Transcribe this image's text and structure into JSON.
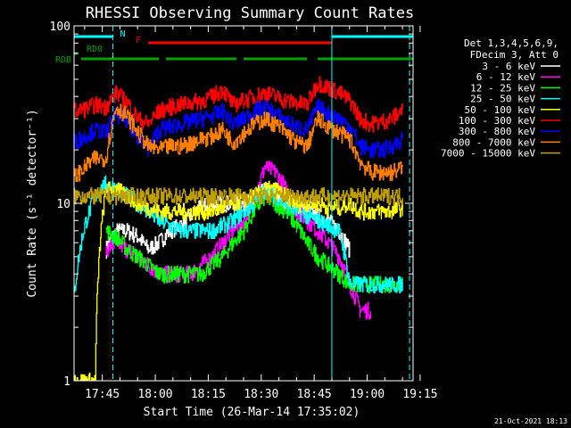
{
  "chart_data": {
    "type": "line",
    "title": "RHESSI Observing Summary Count Rates",
    "xlabel": "Start Time (26-Mar-14 17:35:02)",
    "ylabel": "Count Rate (s⁻¹ detector⁻¹)",
    "yscale": "log",
    "ylim": [
      1,
      100
    ],
    "xlim": [
      "17:37",
      "19:13"
    ],
    "xticks": [
      "17:45",
      "18:00",
      "18:15",
      "18:30",
      "18:45",
      "19:00",
      "19:15"
    ],
    "yticks": [
      "1",
      "10",
      "100"
    ],
    "legend_header": [
      "Det 1,3,4,5,6,9,",
      "FDecim 3, Att 0"
    ],
    "legend_position": "top-right",
    "footer": "21-Oct-2021 18:13",
    "x": [
      "17:37",
      "17:40",
      "17:43",
      "17:46",
      "17:49",
      "17:52",
      "17:55",
      "17:58",
      "18:01",
      "18:04",
      "18:07",
      "18:10",
      "18:13",
      "18:16",
      "18:19",
      "18:22",
      "18:25",
      "18:28",
      "18:31",
      "18:34",
      "18:37",
      "18:40",
      "18:43",
      "18:46",
      "18:49",
      "18:52",
      "18:55",
      "18:58",
      "19:01",
      "19:04",
      "19:07",
      "19:10"
    ],
    "series": [
      {
        "name": "3 - 6 keV",
        "color": "#ffffff",
        "values": [
          null,
          null,
          null,
          5.5,
          7,
          7,
          6.5,
          5.5,
          6,
          7,
          7.5,
          8.5,
          9.5,
          10,
          10,
          10,
          10,
          10.5,
          12,
          11,
          10,
          9.5,
          9,
          8.5,
          8,
          7,
          5.5,
          null,
          null,
          null,
          null,
          null
        ]
      },
      {
        "name": "6 - 12 keV",
        "color": "#ff00ff",
        "values": [
          null,
          null,
          null,
          5.5,
          6,
          5.5,
          5,
          4.5,
          4,
          4,
          4,
          4,
          4.5,
          5,
          6,
          7,
          8,
          10,
          16,
          15,
          12,
          9,
          8,
          7,
          6,
          5,
          3.5,
          2.5,
          2.5,
          null,
          null,
          null
        ]
      },
      {
        "name": "12 - 25 keV",
        "color": "#00ff00",
        "values": [
          null,
          null,
          null,
          7,
          6.5,
          5.5,
          5,
          4.5,
          4,
          4,
          4,
          4,
          4,
          4.5,
          5,
          6,
          7,
          9,
          11,
          10,
          9,
          7.5,
          6,
          5,
          4.5,
          4,
          3.5,
          3.5,
          3.5,
          3.5,
          3.5,
          3.5
        ]
      },
      {
        "name": "25 - 50 keV",
        "color": "#00ffff",
        "values": [
          3,
          7.5,
          11,
          13,
          12,
          11,
          10,
          9,
          8,
          7.5,
          7,
          7,
          7,
          7,
          7.5,
          8,
          9,
          10,
          12,
          11,
          10,
          9,
          8.5,
          8,
          7.5,
          7,
          3.5,
          3.5,
          3.5,
          3.5,
          3.5,
          3.5
        ]
      },
      {
        "name": "50 - 100 keV",
        "color": "#ffff00",
        "values": [
          1,
          1,
          1,
          12,
          12,
          11,
          10,
          9.5,
          9,
          9,
          9,
          9,
          9,
          9,
          9.5,
          10,
          10.5,
          11,
          12,
          12,
          11,
          10,
          10,
          10,
          9.5,
          9.5,
          10,
          9,
          9,
          9,
          9,
          9.5
        ]
      },
      {
        "name": "100 - 300 keV",
        "color": "#ff0000",
        "values": [
          33,
          34,
          36,
          35,
          42,
          37,
          30,
          28,
          33,
          35,
          36,
          37,
          38,
          40,
          44,
          36,
          38,
          40,
          42,
          40,
          38,
          37,
          36,
          48,
          45,
          42,
          38,
          30,
          28,
          29,
          30,
          34
        ]
      },
      {
        "name": "300 - 800 keV",
        "color": "#0000ff",
        "values": [
          22,
          24,
          26,
          25,
          32,
          29,
          24,
          20,
          26,
          27,
          28,
          29,
          30,
          31,
          33,
          28,
          30,
          33,
          35,
          32,
          29,
          27,
          26,
          35,
          32,
          30,
          27,
          21,
          20,
          20,
          21,
          23
        ]
      },
      {
        "name": "800 - 7000 keV",
        "color": "#ff8000",
        "values": [
          14,
          16,
          18,
          18,
          35,
          31,
          25,
          21,
          20,
          21,
          21,
          22,
          23,
          24,
          26,
          22,
          25,
          28,
          30,
          28,
          25,
          22,
          21,
          30,
          27,
          25,
          23,
          17,
          15,
          15,
          15,
          16
        ]
      },
      {
        "name": "7000 - 15000 keV",
        "color": "#c0a000",
        "values": [
          11,
          11,
          11,
          11,
          11,
          11,
          11,
          11,
          11,
          11,
          11,
          11,
          11,
          11,
          11,
          11,
          11,
          11,
          11,
          11,
          11,
          11,
          11,
          11,
          11,
          11,
          11,
          11,
          11,
          11,
          11,
          11
        ]
      }
    ],
    "flags": [
      {
        "label": "N",
        "color": "#00ffff",
        "segments": [
          [
            "17:37",
            "17:48"
          ],
          [
            "18:50",
            "19:13"
          ]
        ]
      },
      {
        "label": "F",
        "color": "#ff0000",
        "segments": [
          [
            "17:58",
            "18:50"
          ]
        ]
      },
      {
        "label": "RD0",
        "color": "#00a000",
        "segments": [
          [
            "17:37",
            "17:38"
          ]
        ]
      },
      {
        "label": "RDB",
        "color": "#00a000",
        "segments": [
          [
            "17:39",
            "18:01"
          ],
          [
            "18:03",
            "18:23"
          ],
          [
            "18:25",
            "18:43"
          ],
          [
            "18:46",
            "19:13"
          ]
        ]
      }
    ],
    "vlines": [
      {
        "x": "17:48",
        "color": "#00ffff",
        "style": "dashed"
      },
      {
        "x": "18:50",
        "color": "#00ffff",
        "style": "solid"
      },
      {
        "x": "19:12",
        "color": "#00ffff",
        "style": "dashed"
      }
    ],
    "grid": false
  }
}
